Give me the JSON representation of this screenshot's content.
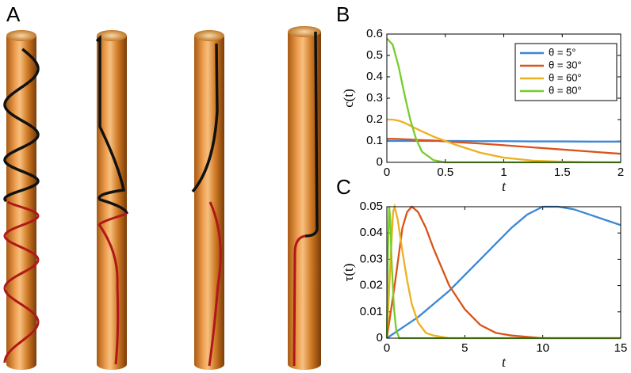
{
  "panel_a": {
    "label": "A"
  },
  "chart_data": [
    {
      "type": "line",
      "panel_label": "B",
      "ylabel": "c(t)",
      "xlabel": "t",
      "x": [
        0,
        0.05,
        0.1,
        0.15,
        0.2,
        0.25,
        0.3,
        0.4,
        0.5,
        0.6,
        0.8,
        1.0,
        1.25,
        1.5,
        1.75,
        2
      ],
      "xlim": [
        0,
        2
      ],
      "xticks": [
        0,
        0.5,
        1,
        1.5,
        2
      ],
      "ylim": [
        0,
        0.6
      ],
      "yticks": [
        0,
        0.1,
        0.2,
        0.3,
        0.4,
        0.5,
        0.6
      ],
      "legend": "upper right",
      "series": [
        {
          "name": "θ = 5°",
          "color": "#3c87d4",
          "values": [
            0.1,
            0.1,
            0.1,
            0.1,
            0.1,
            0.1,
            0.1,
            0.1,
            0.1,
            0.1,
            0.099,
            0.099,
            0.098,
            0.098,
            0.097,
            0.097
          ]
        },
        {
          "name": "θ = 30°",
          "color": "#d9531a",
          "values": [
            0.11,
            0.11,
            0.109,
            0.108,
            0.107,
            0.105,
            0.104,
            0.102,
            0.098,
            0.094,
            0.088,
            0.08,
            0.07,
            0.06,
            0.05,
            0.04
          ]
        },
        {
          "name": "θ = 60°",
          "color": "#edb120",
          "values": [
            0.2,
            0.2,
            0.195,
            0.185,
            0.172,
            0.158,
            0.145,
            0.12,
            0.1,
            0.08,
            0.045,
            0.022,
            0.008,
            0.003,
            0.001,
            0
          ]
        },
        {
          "name": "θ = 80°",
          "color": "#77cc2c",
          "values": [
            0.58,
            0.55,
            0.45,
            0.32,
            0.2,
            0.11,
            0.05,
            0.01,
            0,
            0,
            0,
            0,
            0,
            0,
            0,
            0
          ]
        }
      ]
    },
    {
      "type": "line",
      "panel_label": "C",
      "ylabel": "τ(t)",
      "xlabel": "t",
      "xlim": [
        0,
        15
      ],
      "xticks": [
        0,
        5,
        10,
        15
      ],
      "ylim": [
        0,
        0.05
      ],
      "yticks": [
        0,
        0.01,
        0.02,
        0.03,
        0.04,
        0.05
      ],
      "series": [
        {
          "color": "#3c87d4",
          "x": [
            0,
            1,
            2,
            3,
            4,
            5,
            6,
            7,
            8,
            9,
            10,
            11,
            12,
            13,
            14,
            15
          ],
          "values": [
            0,
            0.004,
            0.008,
            0.013,
            0.018,
            0.024,
            0.03,
            0.036,
            0.042,
            0.047,
            0.05,
            0.05,
            0.049,
            0.047,
            0.045,
            0.043
          ]
        },
        {
          "color": "#d9531a",
          "x": [
            0,
            0.5,
            1,
            1.3,
            1.6,
            2,
            2.5,
            3,
            3.5,
            4,
            5,
            6,
            7,
            8,
            10,
            15
          ],
          "values": [
            0,
            0.02,
            0.042,
            0.048,
            0.05,
            0.048,
            0.042,
            0.034,
            0.027,
            0.02,
            0.011,
            0.005,
            0.002,
            0.001,
            0,
            0
          ]
        },
        {
          "color": "#edb120",
          "x": [
            0,
            0.2,
            0.4,
            0.5,
            0.7,
            1,
            1.3,
            1.6,
            2,
            2.5,
            3,
            4,
            15
          ],
          "values": [
            0,
            0.025,
            0.048,
            0.05,
            0.045,
            0.033,
            0.022,
            0.013,
            0.006,
            0.002,
            0.001,
            0,
            0
          ]
        },
        {
          "color": "#77cc2c",
          "x": [
            0,
            0.08,
            0.15,
            0.22,
            0.3,
            0.45,
            0.6,
            0.8,
            15
          ],
          "values": [
            0,
            0.035,
            0.05,
            0.045,
            0.03,
            0.012,
            0.003,
            0,
            0
          ]
        }
      ]
    }
  ]
}
